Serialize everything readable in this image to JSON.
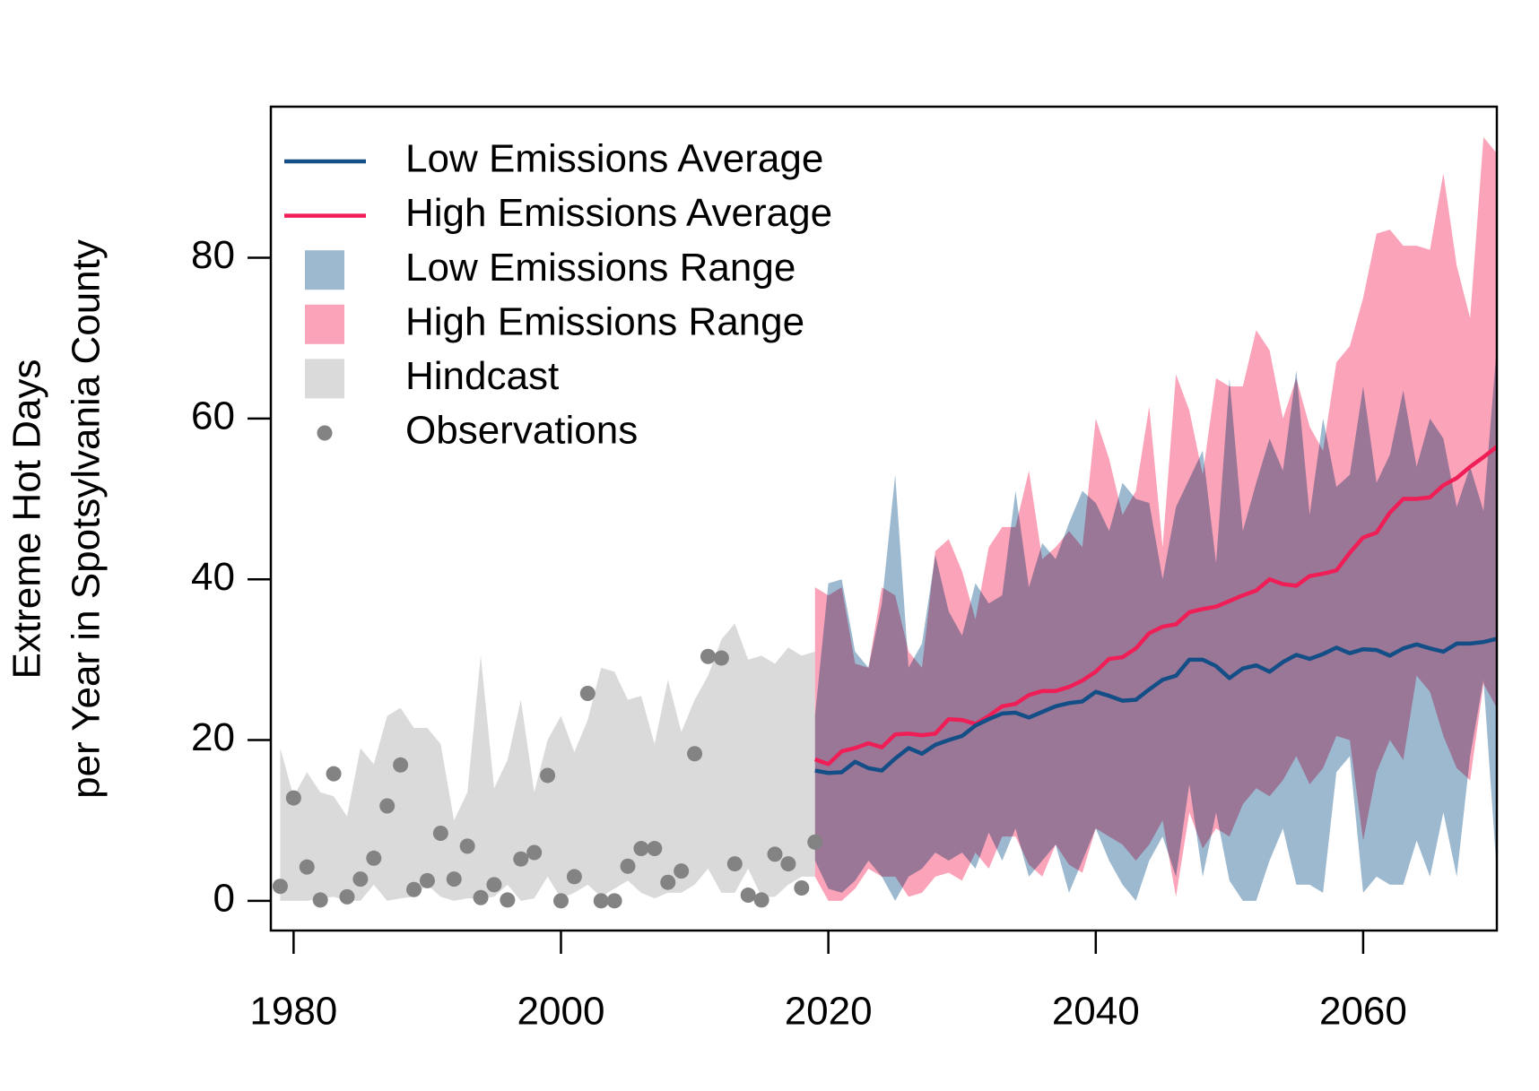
{
  "chart_data": {
    "type": "line",
    "y_label_lines": [
      "Extreme Hot Days",
      "per Year in Spotsylvania County"
    ],
    "xlim": [
      1978.3,
      2070
    ],
    "ylim": [
      -3.7,
      98.8
    ],
    "xticks": [
      1980,
      2000,
      2020,
      2040,
      2060
    ],
    "yticks": [
      0,
      20,
      40,
      60,
      80
    ],
    "grid": false,
    "legend": "topleft",
    "series": [
      {
        "name": "Low Emissions Average",
        "style": "line",
        "color": "#134f86",
        "x": [
          2019,
          2020,
          2021,
          2022,
          2023,
          2024,
          2025,
          2026,
          2027,
          2028,
          2029,
          2030,
          2031,
          2032,
          2033,
          2034,
          2035,
          2036,
          2037,
          2038,
          2039,
          2040,
          2041,
          2042,
          2043,
          2044,
          2045,
          2046,
          2047,
          2048,
          2049,
          2050,
          2051,
          2052,
          2053,
          2054,
          2055,
          2056,
          2057,
          2058,
          2059,
          2060,
          2061,
          2062,
          2063,
          2064,
          2065,
          2066,
          2067,
          2068,
          2069,
          2070
        ],
        "values": [
          16.2,
          15.9,
          16,
          17.3,
          16.5,
          16.2,
          17.7,
          19,
          18.3,
          19.4,
          20,
          20.5,
          21.8,
          22.6,
          23.3,
          23.4,
          22.8,
          23.5,
          24.2,
          24.6,
          24.8,
          26,
          25.5,
          24.9,
          25,
          26.3,
          27.5,
          28,
          30,
          30,
          29.2,
          27.7,
          28.9,
          29.3,
          28.5,
          29.7,
          30.6,
          30.1,
          30.7,
          31.5,
          30.8,
          31.3,
          31.2,
          30.5,
          31.4,
          31.9,
          31.4,
          31,
          32,
          32,
          32.2,
          32.6
        ]
      },
      {
        "name": "High Emissions Average",
        "style": "line",
        "color": "#f01e57",
        "x": [
          2019,
          2020,
          2021,
          2022,
          2023,
          2024,
          2025,
          2026,
          2027,
          2028,
          2029,
          2030,
          2031,
          2032,
          2033,
          2034,
          2035,
          2036,
          2037,
          2038,
          2039,
          2040,
          2041,
          2042,
          2043,
          2044,
          2045,
          2046,
          2047,
          2048,
          2049,
          2050,
          2051,
          2052,
          2053,
          2054,
          2055,
          2056,
          2057,
          2058,
          2059,
          2060,
          2061,
          2062,
          2063,
          2064,
          2065,
          2066,
          2067,
          2068,
          2069,
          2070
        ],
        "values": [
          17.6,
          17,
          18.6,
          19,
          19.6,
          19.1,
          20.7,
          20.8,
          20.6,
          20.8,
          22.6,
          22.5,
          22,
          23,
          24.2,
          24.5,
          25.6,
          26.1,
          26.1,
          26.6,
          27.4,
          28.5,
          30.1,
          30.3,
          31.4,
          33.3,
          34.1,
          34.4,
          35.9,
          36.3,
          36.6,
          37.3,
          38,
          38.6,
          40,
          39.4,
          39.2,
          40.4,
          40.7,
          41.1,
          43.3,
          45.2,
          45.8,
          48.3,
          50,
          50,
          50.2,
          51.7,
          52.6,
          54,
          55.2,
          56.5
        ]
      },
      {
        "name": "Low Emissions Range",
        "style": "band",
        "color": "#9db9d0",
        "x": [
          2019,
          2020,
          2021,
          2022,
          2023,
          2024,
          2025,
          2026,
          2027,
          2028,
          2029,
          2030,
          2031,
          2032,
          2033,
          2034,
          2035,
          2036,
          2037,
          2038,
          2039,
          2040,
          2041,
          2042,
          2043,
          2044,
          2045,
          2046,
          2047,
          2048,
          2049,
          2050,
          2051,
          2052,
          2053,
          2054,
          2055,
          2056,
          2057,
          2058,
          2059,
          2060,
          2061,
          2062,
          2063,
          2064,
          2065,
          2066,
          2067,
          2068,
          2069,
          2070
        ],
        "lower": [
          5,
          1.5,
          1,
          2.5,
          5,
          3,
          0,
          3,
          4,
          6,
          5,
          6,
          4,
          8.5,
          5,
          9,
          3,
          5,
          7,
          1,
          5,
          9,
          5,
          2,
          0,
          5,
          8,
          3,
          14.5,
          3,
          11,
          2.5,
          0,
          0,
          5,
          9,
          2,
          2,
          1,
          16,
          18,
          1,
          3,
          2,
          2,
          7.5,
          3,
          11,
          3,
          18,
          27.5,
          3.5
        ],
        "upper": [
          23,
          39.5,
          40,
          31,
          29,
          37,
          53,
          29,
          32,
          43,
          36,
          33,
          39.5,
          37,
          38,
          51,
          39,
          44.5,
          42.5,
          47,
          51,
          49.5,
          46,
          52,
          50,
          49.5,
          40,
          49,
          52.5,
          56,
          42,
          65,
          46,
          52,
          57.5,
          53.5,
          66,
          48,
          60,
          51.5,
          53,
          64,
          52,
          55.5,
          63.5,
          54,
          60,
          57.5,
          49,
          54,
          48.5,
          69
        ]
      },
      {
        "name": "High Emissions Range",
        "style": "band",
        "color": "#fba3b9",
        "x": [
          2019,
          2020,
          2021,
          2022,
          2023,
          2024,
          2025,
          2026,
          2027,
          2028,
          2029,
          2030,
          2031,
          2032,
          2033,
          2034,
          2035,
          2036,
          2037,
          2038,
          2039,
          2040,
          2041,
          2042,
          2043,
          2044,
          2045,
          2046,
          2047,
          2048,
          2049,
          2050,
          2051,
          2052,
          2053,
          2054,
          2055,
          2056,
          2057,
          2058,
          2059,
          2060,
          2061,
          2062,
          2063,
          2064,
          2065,
          2066,
          2067,
          2068,
          2069,
          2070
        ],
        "lower": [
          3,
          0,
          0,
          1.5,
          4,
          3,
          3,
          0.5,
          1,
          3,
          3.5,
          2.5,
          6,
          4,
          8,
          8,
          4.5,
          3,
          7,
          4.5,
          3.5,
          9,
          8,
          7,
          5,
          7,
          10,
          0.5,
          11,
          6.5,
          9,
          8,
          12,
          14,
          13,
          15,
          18,
          14.5,
          16.5,
          20.5,
          20,
          7.5,
          16,
          20,
          17.5,
          28,
          26,
          20.5,
          16.5,
          15,
          27,
          24
        ],
        "upper": [
          39,
          38,
          39,
          29.5,
          29,
          39,
          38,
          31,
          29,
          43.5,
          45,
          41,
          35,
          44,
          46.5,
          46.5,
          53.5,
          42.5,
          44,
          46,
          44,
          60,
          55,
          48,
          51,
          61.5,
          44,
          65.5,
          61,
          53,
          65,
          64,
          64,
          71,
          68.5,
          60,
          65,
          59,
          56,
          67,
          69,
          75,
          83,
          83.5,
          81.5,
          81.5,
          81,
          90.5,
          79,
          72.5,
          95,
          93
        ]
      },
      {
        "name": "Hindcast",
        "style": "band",
        "color": "#dadada",
        "x": [
          1979,
          1980,
          1981,
          1982,
          1983,
          1984,
          1985,
          1986,
          1987,
          1988,
          1989,
          1990,
          1991,
          1992,
          1993,
          1994,
          1995,
          1996,
          1997,
          1998,
          1999,
          2000,
          2001,
          2002,
          2003,
          2004,
          2005,
          2006,
          2007,
          2008,
          2009,
          2010,
          2011,
          2012,
          2013,
          2014,
          2015,
          2016,
          2017,
          2018,
          2019
        ],
        "lower": [
          0,
          0,
          0,
          0.3,
          0.5,
          0,
          0,
          2,
          0,
          0.3,
          0.5,
          2,
          0.5,
          0,
          0.3,
          0.3,
          0.5,
          2,
          0,
          0.3,
          3,
          0.3,
          1,
          2,
          0.5,
          1.5,
          2.5,
          1,
          0.3,
          1,
          1,
          2,
          4,
          1,
          1,
          4,
          0.5,
          0.5,
          2,
          3,
          3
        ],
        "upper": [
          19,
          13,
          16,
          13.5,
          13,
          10.5,
          19,
          17,
          23,
          24,
          21.5,
          21.5,
          19.5,
          10,
          13.5,
          30.5,
          14,
          17.5,
          25,
          13.5,
          20,
          23,
          18.5,
          22.5,
          29,
          28.5,
          25,
          25.5,
          19.5,
          27.5,
          21,
          25,
          28,
          32.5,
          34.5,
          30,
          30.5,
          29.5,
          31.5,
          30.5,
          31
        ]
      },
      {
        "name": "Observations",
        "style": "points",
        "color": "#838383",
        "x": [
          1979,
          1980,
          1981,
          1982,
          1983,
          1984,
          1985,
          1986,
          1987,
          1988,
          1989,
          1990,
          1991,
          1992,
          1993,
          1994,
          1995,
          1996,
          1997,
          1998,
          1999,
          2000,
          2001,
          2002,
          2003,
          2004,
          2005,
          2006,
          2007,
          2008,
          2009,
          2010,
          2011,
          2012,
          2013,
          2014,
          2015,
          2016,
          2017,
          2018,
          2019
        ],
        "values": [
          1.8,
          12.8,
          4.2,
          0.1,
          15.8,
          0.5,
          2.7,
          5.3,
          11.8,
          16.9,
          1.4,
          2.5,
          8.4,
          2.7,
          6.8,
          0.4,
          2,
          0.1,
          5.2,
          6,
          15.6,
          0,
          3,
          25.8,
          0,
          0,
          4.3,
          6.5,
          6.5,
          2.3,
          3.7,
          18.3,
          30.4,
          30.2,
          4.6,
          0.7,
          0.1,
          5.8,
          4.6,
          1.6,
          7.3
        ]
      }
    ]
  }
}
